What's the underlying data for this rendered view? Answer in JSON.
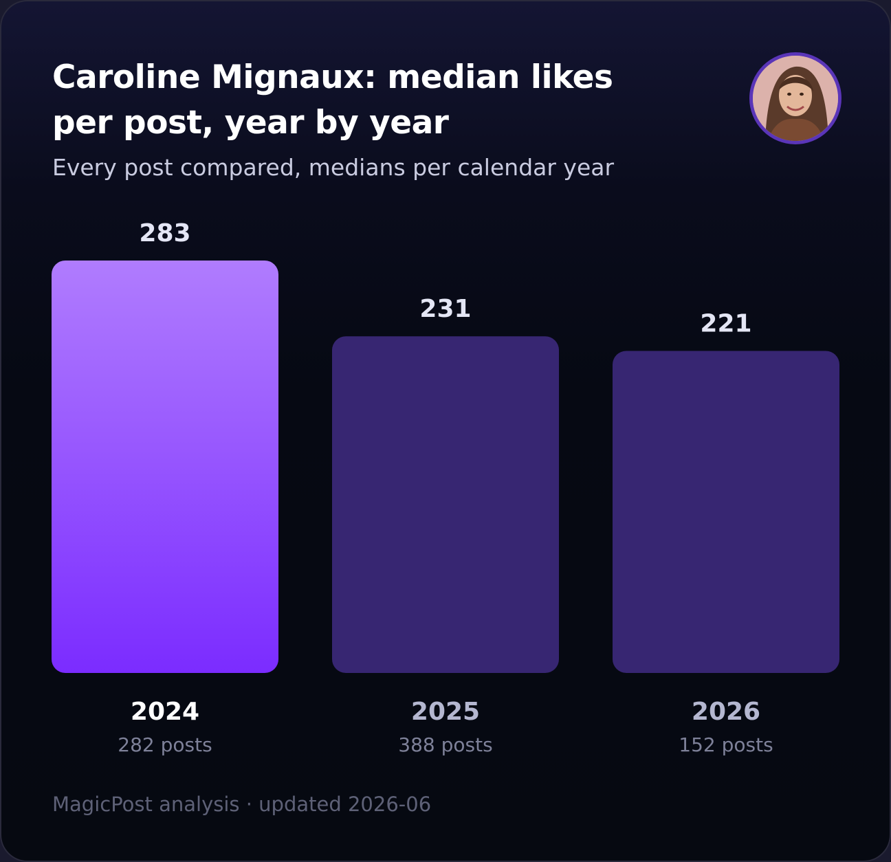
{
  "header": {
    "title": "Caroline Mignaux: median likes per post, year by year",
    "subtitle": "Every post compared, medians per calendar year"
  },
  "avatar": {
    "icon": "person-portrait-avatar"
  },
  "footer": {
    "text": "MagicPost analysis · updated 2026-06"
  },
  "colors": {
    "highlight_top": "#b07cfe",
    "highlight_bottom": "#7b2cff",
    "bar": "#372672",
    "value_label": "#e4e6f5",
    "highlight_year_label": "#ffffff",
    "year_label": "#b4b7d0",
    "count_label": "#7e8199"
  },
  "chart_data": {
    "type": "bar",
    "title": "Caroline Mignaux: median likes per post, year by year",
    "subtitle": "Every post compared, medians per calendar year",
    "xlabel": "",
    "ylabel": "",
    "categories": [
      "2024",
      "2025",
      "2026"
    ],
    "values": [
      283,
      231,
      221
    ],
    "value_labels": [
      "283",
      "231",
      "221"
    ],
    "post_counts": [
      "282 posts",
      "388 posts",
      "152 posts"
    ],
    "highlight_index": 0,
    "ylim": [
      0,
      283
    ],
    "grid": false,
    "legend": "none"
  }
}
